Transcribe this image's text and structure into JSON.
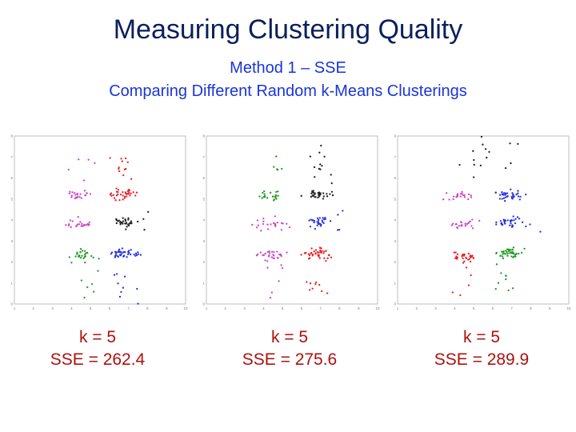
{
  "slide": {
    "title": "Measuring Clustering Quality",
    "subtitle_line1": "Method 1 – SSE",
    "subtitle_line2": "Comparing Different Random k-Means Clusterings"
  },
  "colors": {
    "title": "#0b1f5c",
    "subtitle": "#1a35d9",
    "labels": "#b01010",
    "magenta": "#cc44cc",
    "red": "#e8202a",
    "black": "#222222",
    "green": "#1e9a22",
    "blue": "#2430e0"
  },
  "chart_data": [
    {
      "type": "scatter",
      "title": "",
      "xlim": [
        1,
        10
      ],
      "ylim": [
        0,
        8
      ],
      "x_ticks": [
        "1",
        "2",
        "3",
        "4",
        "5",
        "6",
        "7",
        "8",
        "9",
        "10"
      ],
      "y_ticks": [
        "0",
        "1",
        "2",
        "3",
        "4",
        "5",
        "6",
        "7",
        "8"
      ],
      "k_label": "k = 5",
      "sse_label": "SSE = 262.4",
      "clusters": [
        {
          "color": "magenta",
          "blobs": [
            [
              4.4,
              5.2,
              0.35,
              0.12,
              22
            ],
            [
              4.5,
              3.8,
              0.35,
              0.12,
              24
            ],
            [
              4.6,
              6.6,
              0.3,
              0.4,
              5
            ]
          ]
        },
        {
          "color": "red",
          "blobs": [
            [
              6.7,
              5.2,
              0.35,
              0.12,
              35
            ],
            [
              6.7,
              6.5,
              0.35,
              0.5,
              12
            ]
          ]
        },
        {
          "color": "black",
          "blobs": [
            [
              6.8,
              3.9,
              0.3,
              0.12,
              30
            ],
            [
              7.8,
              3.9,
              0.6,
              0.3,
              4
            ]
          ]
        },
        {
          "color": "green",
          "blobs": [
            [
              4.4,
              2.3,
              0.4,
              0.12,
              28
            ],
            [
              4.7,
              1.1,
              0.3,
              0.5,
              6
            ]
          ]
        },
        {
          "color": "blue",
          "blobs": [
            [
              6.7,
              2.4,
              0.35,
              0.12,
              40
            ],
            [
              6.8,
              1.0,
              0.35,
              0.5,
              10
            ]
          ]
        }
      ]
    },
    {
      "type": "scatter",
      "title": "",
      "xlim": [
        1,
        10
      ],
      "ylim": [
        0,
        8
      ],
      "x_ticks": [
        "1",
        "2",
        "3",
        "4",
        "5",
        "6",
        "7",
        "8",
        "9",
        "10"
      ],
      "y_ticks": [
        "0",
        "1",
        "2",
        "3",
        "4",
        "5",
        "6",
        "7",
        "8"
      ],
      "k_label": "k = 5",
      "sse_label": "SSE = 275.6",
      "clusters": [
        {
          "color": "green",
          "blobs": [
            [
              4.4,
              5.2,
              0.35,
              0.12,
              22
            ],
            [
              4.6,
              6.6,
              0.3,
              0.4,
              5
            ]
          ]
        },
        {
          "color": "black",
          "blobs": [
            [
              6.8,
              5.2,
              0.35,
              0.12,
              35
            ],
            [
              6.8,
              6.5,
              0.35,
              0.5,
              12
            ]
          ]
        },
        {
          "color": "blue",
          "blobs": [
            [
              6.8,
              3.9,
              0.3,
              0.12,
              30
            ],
            [
              7.8,
              3.9,
              0.6,
              0.3,
              4
            ]
          ]
        },
        {
          "color": "magenta",
          "blobs": [
            [
              4.5,
              3.8,
              0.35,
              0.12,
              24
            ],
            [
              4.4,
              2.3,
              0.4,
              0.12,
              28
            ],
            [
              4.7,
              1.1,
              0.3,
              0.5,
              6
            ]
          ]
        },
        {
          "color": "red",
          "blobs": [
            [
              6.8,
              2.4,
              0.35,
              0.12,
              40
            ],
            [
              6.8,
              1.0,
              0.35,
              0.5,
              10
            ]
          ]
        }
      ]
    },
    {
      "type": "scatter",
      "title": "",
      "xlim": [
        1,
        10
      ],
      "ylim": [
        0,
        8
      ],
      "x_ticks": [
        "1",
        "2",
        "3",
        "4",
        "5",
        "6",
        "7",
        "8",
        "9",
        "10"
      ],
      "y_ticks": [
        "0",
        "1",
        "2",
        "3",
        "4",
        "5",
        "6",
        "7",
        "8"
      ],
      "k_label": "k = 5",
      "sse_label": "SSE = 289.9",
      "clusters": [
        {
          "color": "magenta",
          "blobs": [
            [
              4.4,
              5.2,
              0.35,
              0.12,
              22
            ],
            [
              4.5,
              3.8,
              0.35,
              0.12,
              24
            ]
          ]
        },
        {
          "color": "black",
          "blobs": [
            [
              6.0,
              6.8,
              0.8,
              0.5,
              15
            ]
          ]
        },
        {
          "color": "blue",
          "blobs": [
            [
              6.8,
              5.2,
              0.35,
              0.12,
              35
            ],
            [
              6.8,
              3.9,
              0.3,
              0.12,
              30
            ],
            [
              7.8,
              3.9,
              0.6,
              0.3,
              4
            ]
          ]
        },
        {
          "color": "red",
          "blobs": [
            [
              4.4,
              2.3,
              0.4,
              0.12,
              28
            ],
            [
              4.7,
              1.1,
              0.3,
              0.5,
              6
            ]
          ]
        },
        {
          "color": "green",
          "blobs": [
            [
              6.8,
              2.4,
              0.35,
              0.12,
              40
            ],
            [
              6.8,
              1.0,
              0.35,
              0.5,
              10
            ]
          ]
        }
      ]
    }
  ]
}
